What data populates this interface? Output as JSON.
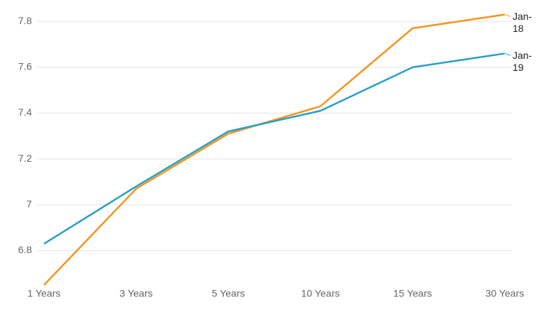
{
  "chart_data": {
    "type": "line",
    "categories": [
      "1 Years",
      "3 Years",
      "5 Years",
      "10 Years",
      "15 Years",
      "30 Years"
    ],
    "series": [
      {
        "name": "Jan-18",
        "color": "#f2961e",
        "values": [
          6.65,
          7.07,
          7.31,
          7.43,
          7.77,
          7.83
        ]
      },
      {
        "name": "Jan-19",
        "color": "#29a0c4",
        "values": [
          6.83,
          7.08,
          7.32,
          7.41,
          7.6,
          7.66
        ]
      }
    ],
    "ylim": [
      6.65,
      7.85
    ],
    "yticks": [
      6.8,
      7,
      7.2,
      7.4,
      7.6,
      7.8
    ],
    "grid": true
  }
}
